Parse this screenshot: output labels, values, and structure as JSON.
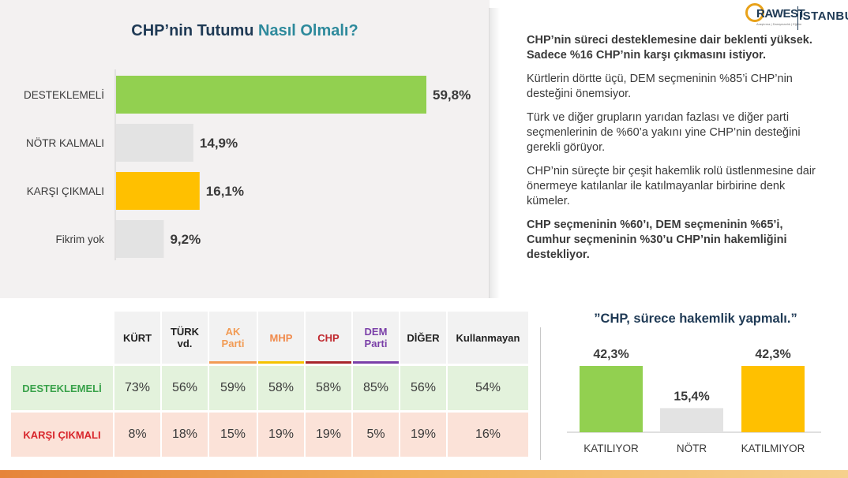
{
  "logo": {
    "brand": "RAWEST",
    "tagline": "Araştırma | Danışmanlık | Eğitim",
    "city": "İSTANBUL"
  },
  "title_main": {
    "part1": "CHP’nin Tutumu ",
    "part2": "Nasıl Olmalı?"
  },
  "notes": [
    {
      "text": "CHP’nin süreci desteklemesine dair beklenti yüksek. Sadece %16 CHP’nin karşı çıkmasını istiyor.",
      "bold": true
    },
    {
      "text": "Kürtlerin dörtte üçü, DEM seçmeninin %85’i CHP’nin desteğini önemsiyor.",
      "bold": false
    },
    {
      "text": "Türk ve diğer grupların yarıdan fazlası ve diğer parti seçmenlerinin de %60’a yakını yine CHP’nin desteğini gerekli görüyor.",
      "bold": false
    },
    {
      "text": "CHP’nin süreçte bir çeşit hakemlik rolü üstlenmesine dair önermeye katılanlar ile katılmayanlar birbirine denk kümeler.",
      "bold": false
    },
    {
      "text": "CHP seçmeninin %60’ı, DEM seçmeninin %65’i, Cumhur seçmeninin %30’u CHP’nin hakemliğini destekliyor.",
      "bold": true
    }
  ],
  "table": {
    "columns": [
      {
        "label": "KÜRT",
        "color": "#222222",
        "underline": ""
      },
      {
        "label": "TÜRK vd.",
        "color": "#222222",
        "underline": ""
      },
      {
        "label": "AK Parti",
        "color": "#f29b54",
        "underline": "#f29b54"
      },
      {
        "label": "MHP",
        "color": "#f08a4b",
        "underline": "#f5c200"
      },
      {
        "label": "CHP",
        "color": "#c0282e",
        "underline": "#a8262c"
      },
      {
        "label": "DEM Parti",
        "color": "#7a3fa8",
        "underline": "#7a3fa8"
      },
      {
        "label": "DİĞER",
        "color": "#222222",
        "underline": ""
      },
      {
        "label": "Kullanmayan",
        "color": "#222222",
        "underline": ""
      }
    ],
    "rows": [
      {
        "label": "DESTEKLEMELİ",
        "values": [
          "73%",
          "56%",
          "59%",
          "58%",
          "58%",
          "85%",
          "56%",
          "54%"
        ]
      },
      {
        "label": "KARŞI ÇIKMALI",
        "values": [
          "8%",
          "18%",
          "15%",
          "19%",
          "19%",
          "5%",
          "19%",
          "16%"
        ]
      }
    ]
  },
  "chart_data": [
    {
      "type": "bar",
      "orientation": "horizontal",
      "title": "CHP’nin Tutumu Nasıl Olmalı?",
      "categories": [
        "DESTEKLEMELİ",
        "NÖTR KALMALI",
        "KARŞI ÇIKMALI",
        "Fikrim yok"
      ],
      "values": [
        59.8,
        14.9,
        16.1,
        9.2
      ],
      "value_labels": [
        "59,8%",
        "14,9%",
        "16,1%",
        "9,2%"
      ],
      "colors": [
        "#92d050",
        "#e3e3e3",
        "#ffc000",
        "#e3e3e3"
      ],
      "xlim": [
        0,
        59.8
      ],
      "grid": false
    },
    {
      "type": "bar",
      "orientation": "vertical",
      "title": "”CHP, sürece hakemlik yapmalı.”",
      "categories": [
        "KATILIYOR",
        "NÖTR",
        "KATILMIYOR"
      ],
      "values": [
        42.3,
        15.4,
        42.3
      ],
      "value_labels": [
        "42,3%",
        "15,4%",
        "42,3%"
      ],
      "colors": [
        "#92d050",
        "#e3e3e3",
        "#ffc000"
      ],
      "ylim": [
        0,
        42.3
      ],
      "grid": false
    }
  ]
}
